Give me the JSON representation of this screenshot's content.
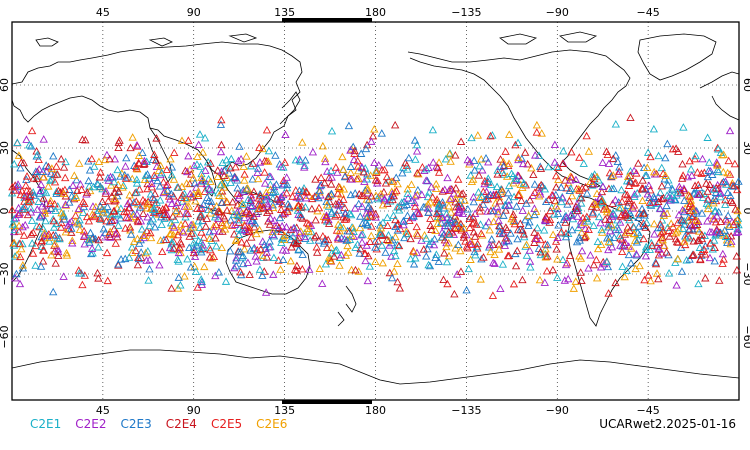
{
  "map": {
    "projection": "cylindrical-equidistant",
    "lon_range": [
      0,
      360
    ],
    "lat_range": [
      -90,
      90
    ],
    "top_lon_ticks": [
      "45",
      "90",
      "135",
      "180",
      "−135",
      "−90",
      "−45"
    ],
    "top_lon_values": [
      45,
      90,
      135,
      180,
      225,
      270,
      315
    ],
    "bottom_lon_ticks": [
      "45",
      "90",
      "135",
      "180",
      "−135",
      "−90",
      "−45"
    ],
    "bottom_lon_values": [
      45,
      90,
      135,
      180,
      225,
      270,
      315
    ],
    "lat_tick_values": [
      60,
      30,
      0,
      -30,
      -60
    ],
    "lat_tick_labels": [
      "60",
      "30",
      "0",
      "−30",
      "−60"
    ],
    "grid": true,
    "point_lat_range": [
      -47,
      47
    ],
    "marker": "hollow-triangle"
  },
  "legend": {
    "series": [
      {
        "name": "C2E1",
        "color": "#1ab0c8"
      },
      {
        "name": "C2E2",
        "color": "#a020c8"
      },
      {
        "name": "C2E3",
        "color": "#1e78c8"
      },
      {
        "name": "C2E4",
        "color": "#c8141e"
      },
      {
        "name": "C2E5",
        "color": "#e61e1e"
      },
      {
        "name": "C2E6",
        "color": "#f0a000"
      }
    ]
  },
  "footer": {
    "label": "UCARwet2.2025-01-16"
  }
}
